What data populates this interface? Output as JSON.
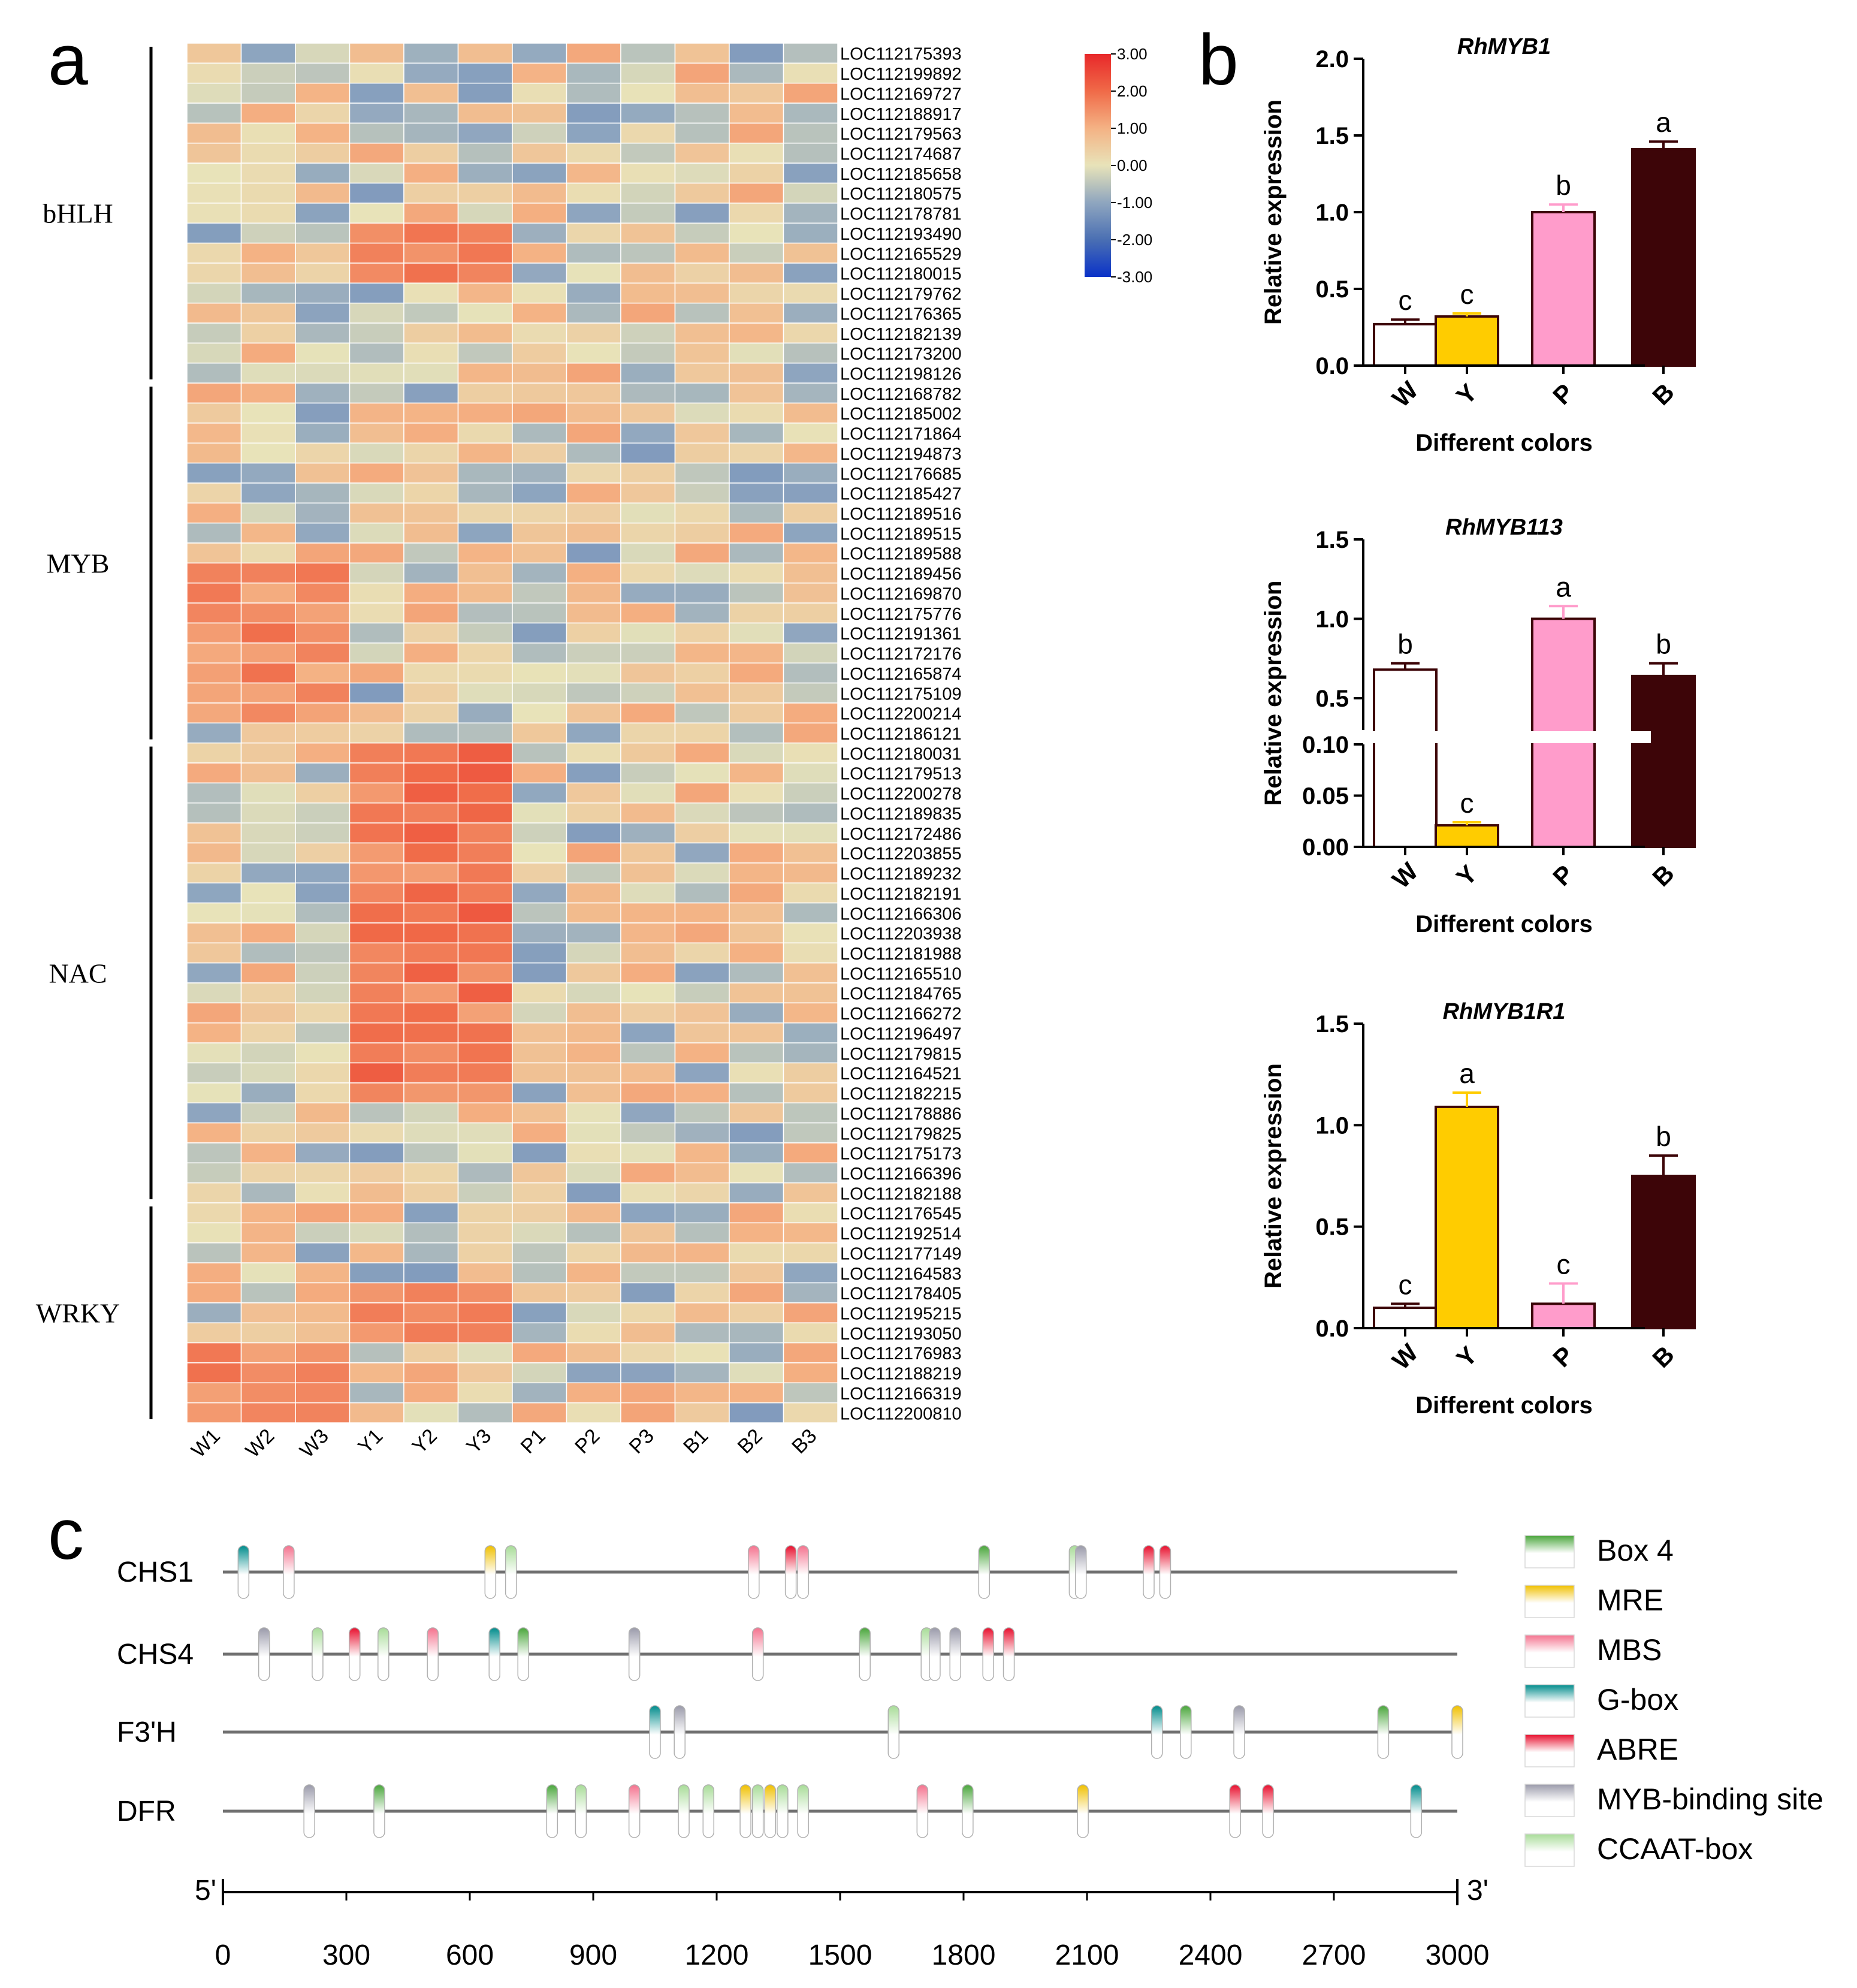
{
  "panels": {
    "a": "a",
    "b": "b",
    "c": "c"
  },
  "chart_data": [
    {
      "type": "heatmap",
      "panel": "a",
      "columns": [
        "W1",
        "W2",
        "W3",
        "Y1",
        "Y2",
        "Y3",
        "P1",
        "P2",
        "P3",
        "B1",
        "B2",
        "B3"
      ],
      "rows": [
        "LOC112175393",
        "LOC112199892",
        "LOC112169727",
        "LOC112188917",
        "LOC112179563",
        "LOC112174687",
        "LOC112185658",
        "LOC112180575",
        "LOC112178781",
        "LOC112193490",
        "LOC112165529",
        "LOC112180015",
        "LOC112179762",
        "LOC112176365",
        "LOC112182139",
        "LOC112173200",
        "LOC112198126",
        "LOC112168782",
        "LOC112185002",
        "LOC112171864",
        "LOC112194873",
        "LOC112176685",
        "LOC112185427",
        "LOC112189516",
        "LOC112189515",
        "LOC112189588",
        "LOC112189456",
        "LOC112169870",
        "LOC112175776",
        "LOC112191361",
        "LOC112172176",
        "LOC112165874",
        "LOC112175109",
        "LOC112200214",
        "LOC112186121",
        "LOC112180031",
        "LOC112179513",
        "LOC112200278",
        "LOC112189835",
        "LOC112172486",
        "LOC112203855",
        "LOC112189232",
        "LOC112182191",
        "LOC112166306",
        "LOC112203938",
        "LOC112181988",
        "LOC112165510",
        "LOC112184765",
        "LOC112166272",
        "LOC112196497",
        "LOC112179815",
        "LOC112164521",
        "LOC112182215",
        "LOC112178886",
        "LOC112179825",
        "LOC112175173",
        "LOC112166396",
        "LOC112182188",
        "LOC112176545",
        "LOC112192514",
        "LOC112177149",
        "LOC112164583",
        "LOC112178405",
        "LOC112195215",
        "LOC112193050",
        "LOC112176983",
        "LOC112188219",
        "LOC112166319",
        "LOC112200810"
      ],
      "groups": [
        {
          "name": "bHLH",
          "start": 0,
          "end": 16
        },
        {
          "name": "MYB",
          "start": 17,
          "end": 34
        },
        {
          "name": "NAC",
          "start": 35,
          "end": 57
        },
        {
          "name": "WRKY",
          "start": 58,
          "end": 68
        }
      ],
      "colorbar": {
        "ticks": [
          "3.00",
          "2.00",
          "1.00",
          "0.00",
          "-1.00",
          "-2.00",
          "-3.00"
        ],
        "range": [
          -3,
          3
        ],
        "colors": [
          "#0a32c8",
          "#4a6fb3",
          "#8fa6bf",
          "#e8e3b9",
          "#f4b284",
          "#f06a48",
          "#e8282a"
        ]
      },
      "values": []
    },
    {
      "type": "bar",
      "panel": "b",
      "title": "RhMYB1",
      "categories": [
        "W",
        "Y",
        "P",
        "B"
      ],
      "values": [
        0.27,
        0.32,
        1.0,
        1.41
      ],
      "errors": [
        0.03,
        0.02,
        0.05,
        0.05
      ],
      "letters": [
        "c",
        "c",
        "b",
        "a"
      ],
      "colors": [
        "#ffffff",
        "#ffcc00",
        "#ff9ccb",
        "#3d0508"
      ],
      "edge_color": "#3d0508",
      "xlabel": "Different colors",
      "ylabel": "Relative expression",
      "ylim": [
        0,
        2.0
      ],
      "yticks": [
        "0.0",
        "0.5",
        "1.0",
        "1.5",
        "2.0"
      ]
    },
    {
      "type": "bar",
      "panel": "b",
      "title": "RhMYB113",
      "categories": [
        "W",
        "Y",
        "P",
        "B"
      ],
      "values": [
        0.68,
        0.021,
        1.0,
        0.64
      ],
      "errors": [
        0.04,
        0.003,
        0.08,
        0.08
      ],
      "letters": [
        "b",
        "c",
        "a",
        "b"
      ],
      "colors": [
        "#ffffff",
        "#ffcc00",
        "#ff9ccb",
        "#3d0508"
      ],
      "edge_color": "#3d0508",
      "xlabel": "Different colors",
      "ylabel": "Relative expression",
      "broken_axis": {
        "lower": [
          0,
          0.1
        ],
        "upper": [
          0.3,
          1.5
        ]
      },
      "yticks_lower": [
        "0.00",
        "0.05",
        "0.10"
      ],
      "yticks_upper": [
        "0.5",
        "1.0",
        "1.5"
      ]
    },
    {
      "type": "bar",
      "panel": "b",
      "title": "RhMYB1R1",
      "categories": [
        "W",
        "Y",
        "P",
        "B"
      ],
      "values": [
        0.1,
        1.09,
        0.12,
        0.75
      ],
      "errors": [
        0.02,
        0.07,
        0.1,
        0.1
      ],
      "letters": [
        "c",
        "a",
        "c",
        "b"
      ],
      "colors": [
        "#ffffff",
        "#ffcc00",
        "#ff9ccb",
        "#3d0508"
      ],
      "edge_color": "#3d0508",
      "xlabel": "Different colors",
      "ylabel": "Relative expression",
      "ylim": [
        0,
        1.5
      ],
      "yticks": [
        "0.0",
        "0.5",
        "1.0",
        "1.5"
      ]
    },
    {
      "type": "scatter",
      "panel": "c",
      "genes": [
        "CHS1",
        "CHS4",
        "F3'H",
        "DFR"
      ],
      "x_range": [
        0,
        3000
      ],
      "xticks": [
        "0",
        "300",
        "600",
        "900",
        "1200",
        "1500",
        "1800",
        "2100",
        "2400",
        "2700",
        "3000"
      ],
      "end_labels": {
        "left": "5'",
        "right": "3'"
      },
      "legend": [
        {
          "name": "Box 4",
          "key": "box4",
          "color": "#4aa63c"
        },
        {
          "name": "MRE",
          "key": "mre",
          "color": "#f0c000"
        },
        {
          "name": "MBS",
          "key": "mbs",
          "color": "#f4728e"
        },
        {
          "name": "G-box",
          "key": "gbox",
          "color": "#008c8c"
        },
        {
          "name": "ABRE",
          "key": "abre",
          "color": "#e8102e"
        },
        {
          "name": "MYB-binding site",
          "key": "myb",
          "color": "#9a9aaa"
        },
        {
          "name": "CCAAT-box",
          "key": "ccaat",
          "color": "#a8dc98"
        }
      ],
      "elements": {
        "CHS1": [
          [
            50,
            "gbox"
          ],
          [
            160,
            "mbs"
          ],
          [
            650,
            "mre"
          ],
          [
            700,
            "ccaat"
          ],
          [
            1290,
            "mbs"
          ],
          [
            1380,
            "abre"
          ],
          [
            1410,
            "mbs"
          ],
          [
            1850,
            "box4"
          ],
          [
            2070,
            "ccaat"
          ],
          [
            2085,
            "myb"
          ],
          [
            2250,
            "abre"
          ],
          [
            2290,
            "abre"
          ]
        ],
        "CHS4": [
          [
            100,
            "myb"
          ],
          [
            230,
            "ccaat"
          ],
          [
            320,
            "abre"
          ],
          [
            390,
            "ccaat"
          ],
          [
            510,
            "mbs"
          ],
          [
            660,
            "gbox"
          ],
          [
            730,
            "box4"
          ],
          [
            1000,
            "myb"
          ],
          [
            1300,
            "mbs"
          ],
          [
            1560,
            "box4"
          ],
          [
            1710,
            "ccaat"
          ],
          [
            1730,
            "myb"
          ],
          [
            1780,
            "myb"
          ],
          [
            1860,
            "abre"
          ],
          [
            1910,
            "abre"
          ]
        ],
        "F3'H": [
          [
            1050,
            "gbox"
          ],
          [
            1110,
            "myb"
          ],
          [
            1630,
            "ccaat"
          ],
          [
            2270,
            "gbox"
          ],
          [
            2340,
            "box4"
          ],
          [
            2470,
            "myb"
          ],
          [
            2820,
            "box4"
          ],
          [
            3000,
            "mre"
          ]
        ],
        "DFR": [
          [
            210,
            "myb"
          ],
          [
            380,
            "box4"
          ],
          [
            800,
            "box4"
          ],
          [
            870,
            "ccaat"
          ],
          [
            1000,
            "mbs"
          ],
          [
            1120,
            "ccaat"
          ],
          [
            1180,
            "ccaat"
          ],
          [
            1270,
            "mre"
          ],
          [
            1300,
            "ccaat"
          ],
          [
            1330,
            "mre"
          ],
          [
            1360,
            "ccaat"
          ],
          [
            1410,
            "ccaat"
          ],
          [
            1700,
            "mbs"
          ],
          [
            1810,
            "box4"
          ],
          [
            2090,
            "mre"
          ],
          [
            2460,
            "abre"
          ],
          [
            2540,
            "abre"
          ],
          [
            2900,
            "gbox"
          ]
        ]
      }
    }
  ]
}
